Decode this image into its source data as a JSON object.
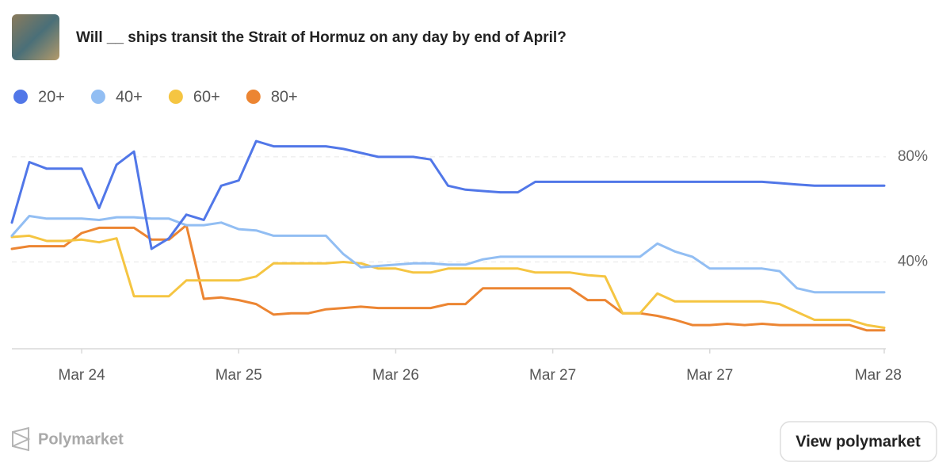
{
  "chart_data": {
    "type": "line",
    "title": "Will __ ships transit the Strait of Hormuz on any day by end of April?",
    "categories": [
      null,
      null,
      null,
      null,
      "Mar 24",
      null,
      null,
      null,
      null,
      null,
      null,
      null,
      null,
      "Mar 25",
      null,
      null,
      null,
      null,
      null,
      null,
      null,
      null,
      "Mar 26",
      null,
      null,
      null,
      null,
      null,
      null,
      null,
      null,
      "Mar 27",
      null,
      null,
      null,
      null,
      null,
      null,
      null,
      null,
      "Mar 27",
      null,
      null,
      null,
      null,
      null,
      null,
      null,
      null,
      null,
      "Mar 28"
    ],
    "series": [
      {
        "name": "20+",
        "color": "#5177e8",
        "values": [
          55,
          78,
          75.5,
          75.5,
          75.5,
          60.5,
          77,
          82,
          45,
          49,
          58,
          56,
          69,
          71,
          86,
          84,
          84,
          84,
          84,
          83,
          81.5,
          80,
          80,
          80,
          79,
          69,
          67.5,
          67,
          66.5,
          66.5,
          70.5,
          70.5,
          70.5,
          70.5,
          70.5,
          70.5,
          70.5,
          70.5,
          70.5,
          70.5,
          70.5,
          70.5,
          70.5,
          70.5,
          70,
          69.5,
          69,
          69,
          69,
          69,
          69
        ]
      },
      {
        "name": "40+",
        "color": "#92bef3",
        "values": [
          50,
          57.5,
          56.5,
          56.5,
          56.5,
          56,
          57,
          57,
          56.5,
          56.5,
          54,
          54,
          55,
          52.5,
          52,
          50,
          50,
          50,
          50,
          43,
          38,
          38.5,
          39,
          39.5,
          39.5,
          39,
          39,
          41,
          42,
          42,
          42,
          42,
          42,
          42,
          42,
          42,
          42,
          47,
          44,
          42,
          37.5,
          37.5,
          37.5,
          37.5,
          36.5,
          30,
          28.5,
          28.5,
          28.5,
          28.5,
          28.5
        ]
      },
      {
        "name": "60+",
        "color": "#f5c542",
        "values": [
          49.5,
          50,
          48,
          48,
          48.5,
          47.5,
          49,
          27,
          27,
          27,
          33,
          33,
          33,
          33,
          34.5,
          39.5,
          39.5,
          39.5,
          39.5,
          40,
          39.5,
          37.5,
          37.5,
          36,
          36,
          37.5,
          37.5,
          37.5,
          37.5,
          37.5,
          36,
          36,
          36,
          35,
          34.5,
          20.5,
          20.5,
          28,
          25,
          25,
          25,
          25,
          25,
          25,
          24,
          21,
          18,
          18,
          18,
          16,
          15
        ]
      },
      {
        "name": "80+",
        "color": "#ec8532",
        "values": [
          45,
          46,
          46,
          46,
          51,
          53,
          53,
          53,
          48.5,
          48.5,
          54,
          26,
          26.5,
          25.5,
          24,
          20,
          20.5,
          20.5,
          22,
          22.5,
          23,
          22.5,
          22.5,
          22.5,
          22.5,
          24,
          24,
          30,
          30,
          30,
          30,
          30,
          30,
          25.5,
          25.5,
          20.5,
          20.5,
          19.5,
          18,
          16,
          16,
          16.5,
          16,
          16.5,
          16,
          16,
          16,
          16,
          16,
          14,
          14
        ]
      }
    ],
    "ylim": [
      7,
      89
    ],
    "yticks": [
      {
        "value": 40,
        "label": "40%"
      },
      {
        "value": 80,
        "label": "80%"
      }
    ],
    "grid": true
  },
  "footer": {
    "brand": "Polymarket",
    "button": "View polymarket"
  }
}
